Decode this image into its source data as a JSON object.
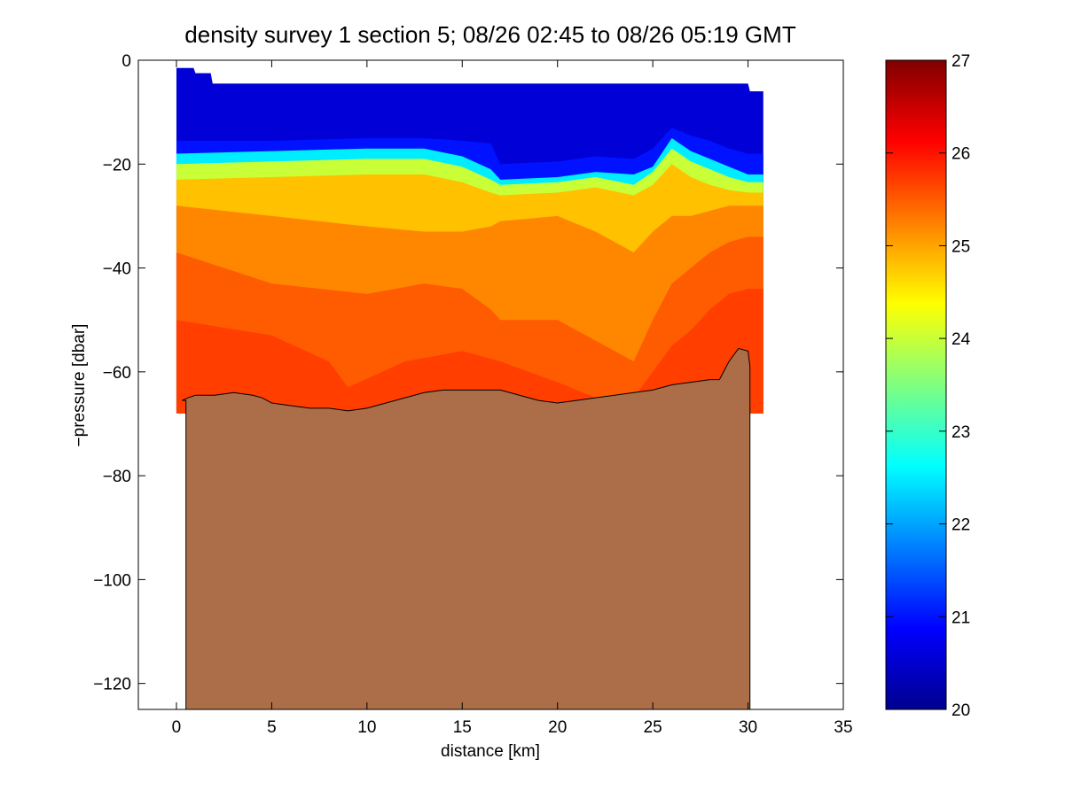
{
  "chart_data": {
    "type": "contour",
    "title": "density survey 1 section 5; 08/26 02:45 to 08/26 05:19 GMT",
    "xlabel": "distance [km]",
    "ylabel": "−pressure [dbar]",
    "xlim": [
      -2,
      35
    ],
    "ylim": [
      -125,
      0
    ],
    "xticks": [
      0,
      5,
      10,
      15,
      20,
      25,
      30,
      35
    ],
    "xtick_labels": [
      "0",
      "5",
      "10",
      "15",
      "20",
      "25",
      "30",
      "35"
    ],
    "yticks": [
      0,
      -20,
      -40,
      -60,
      -80,
      -100,
      -120
    ],
    "ytick_labels": [
      "0",
      "−20",
      "−40",
      "−60",
      "−80",
      "−100",
      "−120"
    ],
    "colorbar": {
      "range": [
        20,
        27
      ],
      "ticks": [
        20,
        21,
        22,
        23,
        24,
        25,
        26,
        27
      ],
      "tick_labels": [
        "20",
        "21",
        "22",
        "23",
        "24",
        "25",
        "26",
        "27"
      ],
      "colormap": "jet"
    },
    "grid": false,
    "data_extent_x": [
      0,
      30.8
    ],
    "surface_top_profile": {
      "x": [
        0,
        0.9,
        1.0,
        1.8,
        1.9,
        30.0,
        30.1,
        30.8
      ],
      "y": [
        -1.5,
        -1.5,
        -2.5,
        -2.5,
        -4.5,
        -4.5,
        -6,
        -6
      ]
    },
    "density_layers": [
      {
        "sigma": 21.0,
        "depth": {
          "x": [
            0,
            5,
            10,
            13,
            15,
            16.5,
            17,
            20,
            22,
            24,
            25,
            26,
            27,
            28,
            29,
            30,
            30.8
          ],
          "y": [
            -15.5,
            -15.5,
            -15,
            -15,
            -15.5,
            -16,
            -20,
            -19.5,
            -18.5,
            -19,
            -17,
            -13,
            -14.5,
            -15.5,
            -17,
            -18,
            -18
          ]
        }
      },
      {
        "sigma": 22.5,
        "depth": {
          "x": [
            0,
            5,
            10,
            13,
            15,
            16.5,
            17,
            20,
            22,
            24,
            25,
            26,
            27,
            28,
            29,
            30,
            30.8
          ],
          "y": [
            -18,
            -17.5,
            -17,
            -17,
            -18.5,
            -21,
            -23,
            -22.5,
            -21.5,
            -22,
            -20.5,
            -15,
            -17.5,
            -19,
            -20.5,
            -22,
            -22
          ]
        }
      },
      {
        "sigma": 24.0,
        "depth": {
          "x": [
            0,
            5,
            10,
            13,
            15,
            16.5,
            17,
            20,
            22,
            24,
            25,
            26,
            27,
            28,
            29,
            30,
            30.8
          ],
          "y": [
            -20,
            -19.5,
            -19,
            -19,
            -20.5,
            -23,
            -24,
            -23.5,
            -22.5,
            -24,
            -21.5,
            -17,
            -19.5,
            -21,
            -22.5,
            -23.5,
            -23.5
          ]
        }
      },
      {
        "sigma": 24.8,
        "depth": {
          "x": [
            0,
            5,
            10,
            13,
            15,
            16.5,
            17,
            20,
            22,
            24,
            25,
            26,
            27,
            28,
            29,
            30,
            30.8
          ],
          "y": [
            -23,
            -22.5,
            -22,
            -22,
            -23.5,
            -25.5,
            -26,
            -25.5,
            -24.5,
            -26,
            -24,
            -20,
            -22.5,
            -24,
            -25,
            -25.5,
            -25.5
          ]
        }
      },
      {
        "sigma": 25.2,
        "depth": {
          "x": [
            0,
            5,
            10,
            13,
            15,
            16.5,
            17,
            20,
            22,
            24,
            25,
            26,
            27,
            28,
            29,
            30,
            30.8
          ],
          "y": [
            -28,
            -30,
            -32,
            -33,
            -33,
            -32,
            -31,
            -30,
            -33,
            -37,
            -33,
            -30,
            -30,
            -29,
            -28,
            -28,
            -28
          ]
        }
      },
      {
        "sigma": 25.5,
        "depth": {
          "x": [
            0,
            5,
            10,
            13,
            15,
            16.5,
            17,
            20,
            22,
            24,
            25,
            26,
            27,
            28,
            29,
            30,
            30.8
          ],
          "y": [
            -37,
            -43,
            -45,
            -43,
            -44,
            -48,
            -50,
            -50,
            -54,
            -58,
            -50,
            -43,
            -40,
            -37,
            -35,
            -34,
            -34
          ]
        }
      },
      {
        "sigma": 25.7,
        "depth": {
          "x": [
            0,
            5,
            8,
            9,
            12,
            15,
            17,
            20,
            22,
            24,
            25,
            26,
            27,
            28,
            29,
            30,
            30.8
          ],
          "y": [
            -50,
            -53,
            -58,
            -63,
            -58,
            -56,
            -58,
            -62,
            -65,
            -65,
            -60,
            -55,
            -52,
            -48,
            -45,
            -44,
            -44
          ]
        }
      }
    ],
    "bathymetry": {
      "x": [
        0.3,
        0.6,
        1,
        2,
        3,
        4,
        4.5,
        5,
        6,
        7,
        8,
        9,
        10,
        11,
        12,
        13,
        14,
        15,
        16,
        17,
        18,
        19,
        20,
        21,
        22,
        23,
        24,
        25,
        26,
        27,
        28,
        28.5,
        29,
        29.5,
        30,
        30.1
      ],
      "y": [
        -65.5,
        -65,
        -64.5,
        -64.5,
        -64,
        -64.5,
        -65,
        -66,
        -66.5,
        -67,
        -67,
        -67.5,
        -67,
        -66,
        -65,
        -64,
        -63.5,
        -63.5,
        -63.5,
        -63.5,
        -64.5,
        -65.5,
        -66,
        -65.5,
        -65,
        -64.5,
        -64,
        -63.5,
        -62.5,
        -62,
        -61.5,
        -61.5,
        -58,
        -55.5,
        -56,
        -59
      ]
    }
  }
}
